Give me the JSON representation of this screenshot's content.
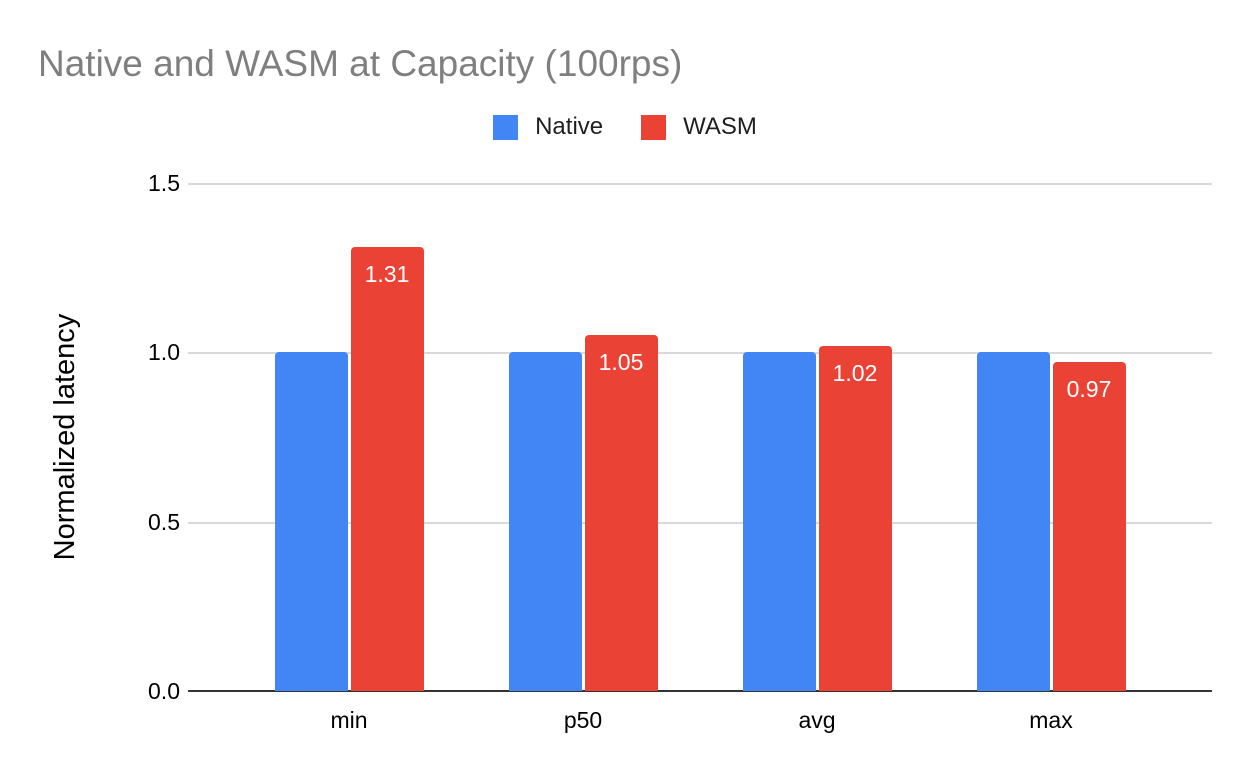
{
  "chart_data": {
    "type": "bar",
    "title": "Native and WASM at Capacity (100rps)",
    "xlabel": "",
    "ylabel": "Normalized latency",
    "categories": [
      "min",
      "p50",
      "avg",
      "max"
    ],
    "series": [
      {
        "name": "Native",
        "color": "#4285F4",
        "values": [
          1.0,
          1.0,
          1.0,
          1.0
        ],
        "data_labels": [
          "",
          "",
          "",
          ""
        ]
      },
      {
        "name": "WASM",
        "color": "#EA4335",
        "values": [
          1.31,
          1.05,
          1.02,
          0.97
        ],
        "data_labels": [
          "1.31",
          "1.05",
          "1.02",
          "0.97"
        ]
      }
    ],
    "ylim": [
      0,
      1.5
    ],
    "yticks": [
      "0.0",
      "0.5",
      "1.0",
      "1.5"
    ],
    "grid": true,
    "legend_position": "top",
    "colors": {
      "title_text": "#7f7f7f",
      "axis_text": "#000000",
      "bar_label_text": "#ffffff",
      "gridline": "#d9d9d9",
      "axis_line": "#333333",
      "background": "#ffffff"
    }
  }
}
